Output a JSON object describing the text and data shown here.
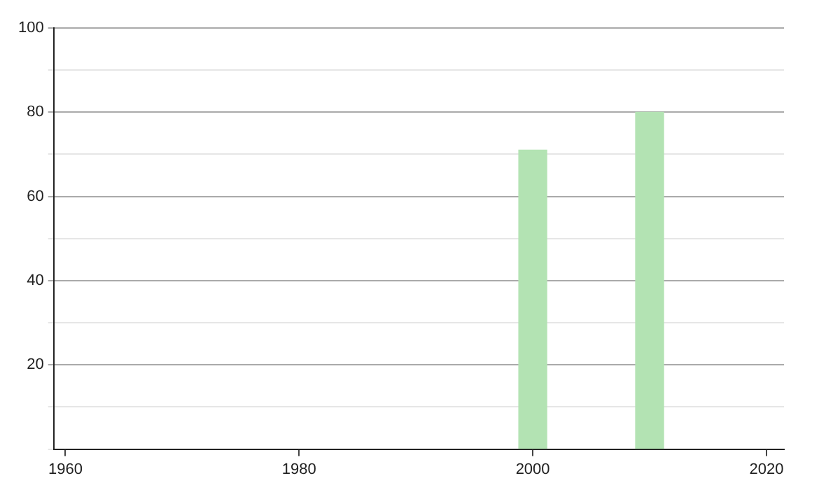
{
  "chart_data": {
    "type": "bar",
    "x": [
      2000,
      2010
    ],
    "values": [
      71,
      80
    ],
    "color": "#b3e3b3",
    "xlim": [
      1959,
      2021.5
    ],
    "xticks": [
      1960,
      1980,
      2000,
      2020
    ],
    "ylim": [
      0,
      100
    ],
    "yticks": [
      {
        "value": 0,
        "label": null
      },
      {
        "value": 10,
        "label": null
      },
      20,
      {
        "value": 30,
        "label": null
      },
      40,
      {
        "value": 50,
        "label": null
      },
      60,
      {
        "value": 70,
        "label": null
      },
      80,
      {
        "value": 90,
        "label": null
      },
      100
    ],
    "grid": "y",
    "legend": false
  }
}
